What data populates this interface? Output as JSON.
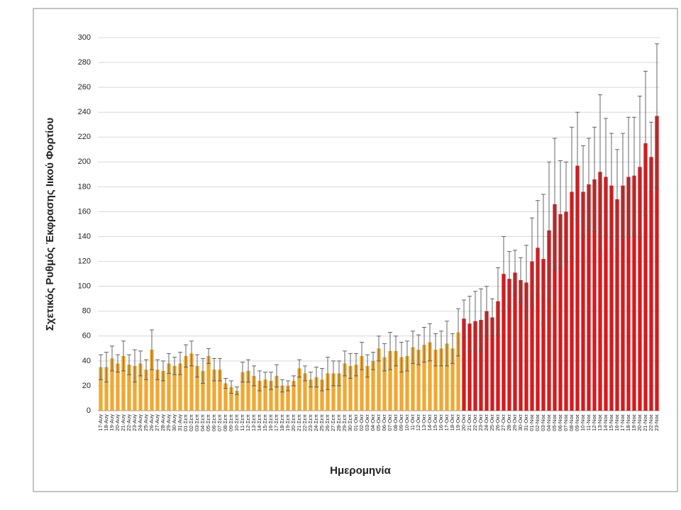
{
  "chart_data": {
    "type": "bar",
    "xlabel": "Ημερομηνία",
    "ylabel": "Σχετικός Ρυθμός Έκφρασης Ιικού Φορτίου",
    "categories": [
      "17-Αυγ",
      "18-Αυγ",
      "19-Αυγ",
      "20-Αυγ",
      "21-Αυγ",
      "22-Αυγ",
      "23-Αυγ",
      "24-Αυγ",
      "25-Αυγ",
      "26-Αυγ",
      "27-Αυγ",
      "28-Αυγ",
      "29-Αυγ",
      "30-Αυγ",
      "31-Αυγ",
      "01-Σεπ",
      "02-Σεπ",
      "03-Σεπ",
      "04-Σεπ",
      "05-Σεπ",
      "06-Σεπ",
      "07-Σεπ",
      "08-Σεπ",
      "09-Σεπ",
      "10-Σεπ",
      "11-Σεπ",
      "12-Σεπ",
      "13-Σεπ",
      "14-Σεπ",
      "15-Σεπ",
      "16-Σεπ",
      "17-Σεπ",
      "18-Σεπ",
      "19-Σεπ",
      "20-Σεπ",
      "21-Σεπ",
      "22-Σεπ",
      "23-Σεπ",
      "24-Σεπ",
      "25-Σεπ",
      "26-Σεπ",
      "27-Σεπ",
      "28-Σεπ",
      "29-Σεπ",
      "30-Σεπ",
      "01-Οκτ",
      "02-Οκτ",
      "03-Οκτ",
      "04-Οκτ",
      "05-Οκτ",
      "06-Οκτ",
      "07-Οκτ",
      "08-Οκτ",
      "09-Οκτ",
      "10-Οκτ",
      "11-Οκτ",
      "12-Οκτ",
      "13-Οκτ",
      "14-Οκτ",
      "15-Οκτ",
      "16-Οκτ",
      "17-Οκτ",
      "18-Οκτ",
      "19-Οκτ",
      "20-Οκτ",
      "21-Οκτ",
      "22-Οκτ",
      "23-Οκτ",
      "24-Οκτ",
      "25-Οκτ",
      "26-Οκτ",
      "27-Οκτ",
      "28-Οκτ",
      "29-Οκτ",
      "30-Οκτ",
      "31-Οκτ",
      "01-Νοε",
      "02-Νοε",
      "03-Νοε",
      "04-Νοε",
      "05-Νοε",
      "06-Νοε",
      "07-Νοε",
      "08-Νοε",
      "09-Νοε",
      "10-Νοε",
      "11-Νοε",
      "12-Νοε",
      "13-Νοε",
      "14-Νοε",
      "15-Νοε",
      "16-Νοε",
      "17-Νοε",
      "18-Νοε",
      "19-Νοε",
      "20-Νοε",
      "21-Νοε",
      "22-Νοε",
      "23-Νοε"
    ],
    "series": [
      {
        "color": "#f0a830",
        "values": [
          35,
          35,
          42,
          38,
          44,
          37,
          36,
          38,
          33,
          49,
          33,
          32,
          38,
          36,
          38,
          44,
          46,
          36,
          32,
          44,
          33,
          33,
          22,
          19,
          16,
          31,
          32,
          28,
          24,
          25,
          24,
          28,
          20,
          20,
          24,
          34,
          30,
          25,
          27,
          25,
          30,
          30,
          30,
          38,
          36,
          37,
          44,
          36,
          40,
          50,
          43,
          48,
          48,
          43,
          44,
          51,
          49,
          53,
          55,
          49,
          50,
          54,
          50,
          63,
          null,
          null,
          null,
          null,
          null,
          null,
          null,
          null,
          null,
          null,
          null,
          null,
          null,
          null,
          null,
          null,
          null,
          null,
          null,
          null,
          null,
          null,
          null,
          null,
          null,
          null,
          null,
          null,
          null,
          null,
          null,
          null,
          null,
          null,
          null
        ],
        "errors": [
          10,
          12,
          10,
          7,
          12,
          8,
          13,
          10,
          8,
          16,
          8,
          8,
          8,
          7,
          9,
          9,
          10,
          9,
          10,
          6,
          9,
          9,
          4,
          5,
          3,
          8,
          9,
          8,
          8,
          6,
          7,
          9,
          5,
          4,
          4,
          7,
          6,
          6,
          8,
          9,
          13,
          10,
          10,
          10,
          10,
          9,
          11,
          9,
          7,
          10,
          11,
          15,
          12,
          12,
          12,
          13,
          12,
          14,
          15,
          13,
          14,
          18,
          12,
          19,
          null,
          null,
          null,
          null,
          null,
          null,
          null,
          null,
          null,
          null,
          null,
          null,
          null,
          null,
          null,
          null,
          null,
          null,
          null,
          null,
          null,
          null,
          null,
          null,
          null,
          null,
          null,
          null,
          null,
          null,
          null,
          null,
          null,
          null,
          null
        ]
      },
      {
        "color": "#d7191c",
        "values": [
          null,
          null,
          null,
          null,
          null,
          null,
          null,
          null,
          null,
          null,
          null,
          null,
          null,
          null,
          null,
          null,
          null,
          null,
          null,
          null,
          null,
          null,
          null,
          null,
          null,
          null,
          null,
          null,
          null,
          null,
          null,
          null,
          null,
          null,
          null,
          null,
          null,
          null,
          null,
          null,
          null,
          null,
          null,
          null,
          null,
          null,
          null,
          null,
          null,
          null,
          null,
          null,
          null,
          null,
          null,
          null,
          null,
          null,
          null,
          null,
          null,
          null,
          null,
          null,
          74,
          70,
          72,
          73,
          80,
          75,
          88,
          110,
          106,
          111,
          105,
          103,
          120,
          131,
          122,
          145,
          166,
          158,
          160,
          176,
          197,
          176,
          182,
          186,
          192,
          188,
          181,
          170,
          181,
          188,
          189,
          196,
          215,
          204,
          237
        ],
        "errors": [
          null,
          null,
          null,
          null,
          null,
          null,
          null,
          null,
          null,
          null,
          null,
          null,
          null,
          null,
          null,
          null,
          null,
          null,
          null,
          null,
          null,
          null,
          null,
          null,
          null,
          null,
          null,
          null,
          null,
          null,
          null,
          null,
          null,
          null,
          null,
          null,
          null,
          null,
          null,
          null,
          null,
          null,
          null,
          null,
          null,
          null,
          null,
          null,
          null,
          null,
          null,
          null,
          null,
          null,
          null,
          null,
          null,
          null,
          null,
          null,
          null,
          null,
          null,
          null,
          15,
          22,
          24,
          25,
          20,
          15,
          27,
          30,
          22,
          18,
          18,
          30,
          35,
          38,
          52,
          55,
          53,
          43,
          40,
          52,
          43,
          37,
          37,
          42,
          62,
          47,
          42,
          40,
          42,
          48,
          47,
          57,
          58,
          28,
          58
        ]
      }
    ],
    "ylim": [
      0,
      300
    ],
    "yticks": [
      0,
      20,
      40,
      60,
      80,
      100,
      120,
      140,
      160,
      180,
      200,
      220,
      240,
      260,
      280,
      300
    ],
    "grid": true
  }
}
